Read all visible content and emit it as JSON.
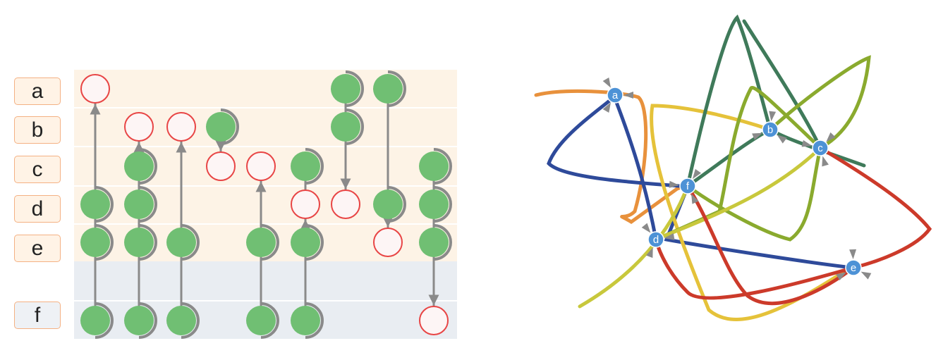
{
  "matrix": {
    "rows": [
      {
        "label": "a",
        "group": "peach"
      },
      {
        "label": "b",
        "group": "peach"
      },
      {
        "label": "c",
        "group": "peach"
      },
      {
        "label": "d",
        "group": "peach"
      },
      {
        "label": "e",
        "group": "peach"
      },
      {
        "label": "f",
        "group": "grey"
      }
    ],
    "columns": [
      {
        "nodes": [
          {
            "row": 0,
            "type": "target"
          },
          {
            "row": 3,
            "type": "source"
          },
          {
            "row": 4,
            "type": "source"
          },
          {
            "row": 5,
            "type": "source"
          }
        ],
        "arrows": [
          [
            5,
            0
          ]
        ]
      },
      {
        "nodes": [
          {
            "row": 1,
            "type": "target"
          },
          {
            "row": 2,
            "type": "source"
          },
          {
            "row": 3,
            "type": "source"
          },
          {
            "row": 4,
            "type": "source"
          },
          {
            "row": 5,
            "type": "source"
          }
        ],
        "arrows": [
          [
            5,
            1
          ]
        ]
      },
      {
        "nodes": [
          {
            "row": 1,
            "type": "target"
          },
          {
            "row": 4,
            "type": "source"
          },
          {
            "row": 5,
            "type": "source"
          }
        ],
        "arrows": [
          [
            5,
            1
          ]
        ]
      },
      {
        "nodes": [
          {
            "row": 1,
            "type": "source"
          },
          {
            "row": 2,
            "type": "target"
          }
        ],
        "arrows": [
          [
            1,
            2
          ]
        ]
      },
      {
        "nodes": [
          {
            "row": 2,
            "type": "target"
          },
          {
            "row": 4,
            "type": "source"
          },
          {
            "row": 5,
            "type": "source"
          }
        ],
        "arrows": [
          [
            5,
            2
          ]
        ]
      },
      {
        "nodes": [
          {
            "row": 2,
            "type": "source"
          },
          {
            "row": 3,
            "type": "target"
          },
          {
            "row": 4,
            "type": "source"
          },
          {
            "row": 5,
            "type": "source"
          }
        ],
        "arrows": [
          [
            5,
            3
          ]
        ]
      },
      {
        "nodes": [
          {
            "row": 0,
            "type": "source"
          },
          {
            "row": 1,
            "type": "source"
          },
          {
            "row": 3,
            "type": "target"
          }
        ],
        "arrows": [
          [
            0,
            3
          ]
        ]
      },
      {
        "nodes": [
          {
            "row": 0,
            "type": "source"
          },
          {
            "row": 3,
            "type": "source"
          },
          {
            "row": 4,
            "type": "target"
          }
        ],
        "arrows": [
          [
            0,
            4
          ]
        ]
      },
      {
        "nodes": [
          {
            "row": 2,
            "type": "source"
          },
          {
            "row": 3,
            "type": "source"
          },
          {
            "row": 4,
            "type": "source"
          },
          {
            "row": 5,
            "type": "target"
          }
        ],
        "arrows": [
          [
            2,
            5
          ]
        ]
      }
    ]
  },
  "graph": {
    "nodes": [
      {
        "id": "a",
        "label": "a"
      },
      {
        "id": "b",
        "label": "b"
      },
      {
        "id": "c",
        "label": "c"
      },
      {
        "id": "d",
        "label": "d"
      },
      {
        "id": "e",
        "label": "e"
      },
      {
        "id": "f",
        "label": "f"
      }
    ],
    "edge_colors": [
      "#e8913c",
      "#2e4a9a",
      "#e5c23a",
      "#3f7a5a",
      "#8aaa2e",
      "#c8c83c",
      "#cc3a2a"
    ]
  },
  "colors": {
    "source_fill": "#70bf73",
    "target_fill": "#fdf5f5",
    "target_stroke": "#e84545",
    "connector": "#8a8a8a",
    "node_fill": "#4d92d6",
    "peach_band": "#fdf3e6",
    "grey_band": "#e9edf2"
  }
}
